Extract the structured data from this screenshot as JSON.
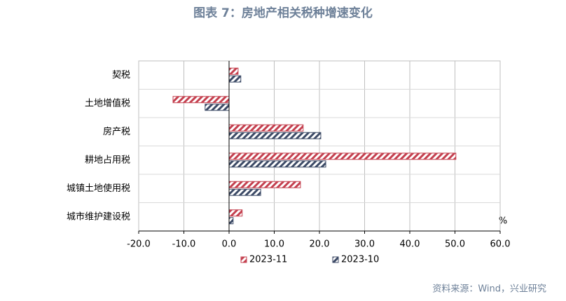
{
  "chart_data": {
    "type": "barh",
    "title": "图表 7：房地产相关税种增速变化",
    "categories": [
      "契税",
      "土地增值税",
      "房产税",
      "耕地占用税",
      "城镇土地使用税",
      "城市维护建设税"
    ],
    "series": [
      {
        "name": "2023-11",
        "color": "#c4404f",
        "values": [
          2.0,
          -12.4,
          16.4,
          50.2,
          15.8,
          2.9
        ]
      },
      {
        "name": "2023-10",
        "color": "#3c4a66",
        "values": [
          2.6,
          -5.3,
          20.3,
          21.4,
          7.0,
          0.9
        ]
      }
    ],
    "xlim": [
      -20,
      60
    ],
    "xticks": [
      {
        "value": -20,
        "label": "-20.0"
      },
      {
        "value": -10,
        "label": "-10.0"
      },
      {
        "value": 0,
        "label": "0.0"
      },
      {
        "value": 10,
        "label": "10.0"
      },
      {
        "value": 20,
        "label": "20.0"
      },
      {
        "value": 30,
        "label": "30.0"
      },
      {
        "value": 40,
        "label": "40.0"
      },
      {
        "value": 50,
        "label": "50.0"
      },
      {
        "value": 60,
        "label": "60.0"
      }
    ],
    "unit_label": "%",
    "grid": true,
    "legend": "bottom",
    "source": "资料来源：Wind，兴业研究"
  }
}
